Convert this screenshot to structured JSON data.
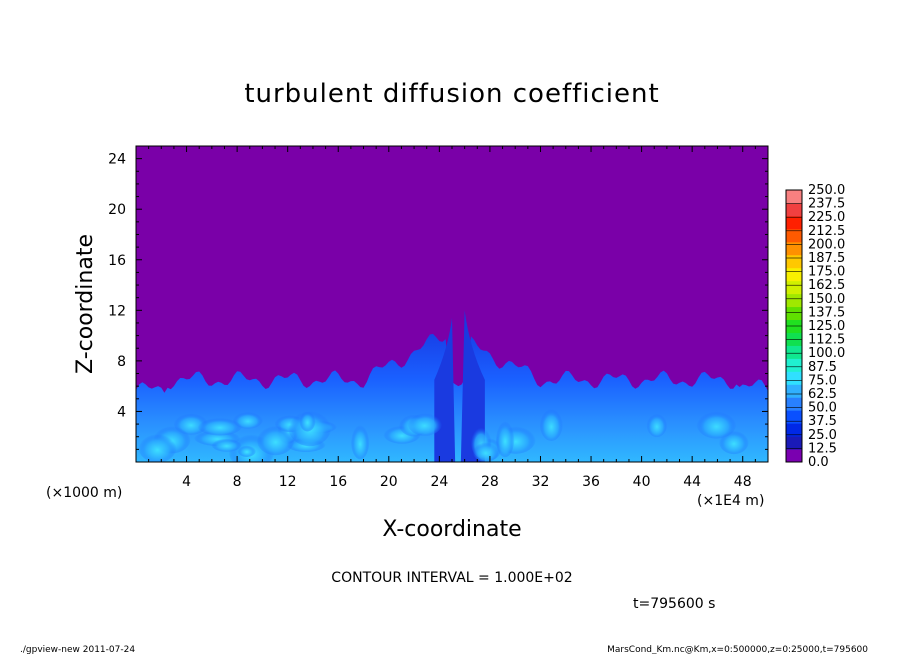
{
  "chart_data": {
    "type": "heatmap",
    "title": "turbulent diffusion coefficient",
    "xlabel": "X-coordinate",
    "ylabel": "Z-coordinate",
    "x_scale_note": "(×1E4 m)",
    "y_scale_note": "(×1000 m)",
    "xlim": [
      0,
      50
    ],
    "ylim": [
      0,
      25
    ],
    "x_ticks": [
      "4",
      "8",
      "12",
      "16",
      "20",
      "24",
      "28",
      "32",
      "36",
      "40",
      "44",
      "48"
    ],
    "y_ticks": [
      "4",
      "8",
      "12",
      "16",
      "20",
      "24"
    ],
    "colorbar_levels": [
      "0.0",
      "12.5",
      "25.0",
      "37.5",
      "50.0",
      "62.5",
      "75.0",
      "87.5",
      "100.0",
      "112.5",
      "125.0",
      "137.5",
      "150.0",
      "162.5",
      "175.0",
      "187.5",
      "200.0",
      "212.5",
      "225.0",
      "237.5",
      "250.0"
    ],
    "colorbar_colors": [
      "#7a00b0",
      "#1a1ab8",
      "#0028e6",
      "#0a50ff",
      "#2880ff",
      "#30b0ff",
      "#30e0ff",
      "#20f0d0",
      "#10e890",
      "#10e050",
      "#20e020",
      "#60e000",
      "#a0e800",
      "#d0f000",
      "#f8f000",
      "#ffc800",
      "#ff9000",
      "#ff5a00",
      "#ff2000",
      "#f04040",
      "#f88080"
    ],
    "background_color": "#7a00a8",
    "boundary_layer_top_approx": 6.5,
    "peak_height_approx": 12.0,
    "peak_x_approx": [
      25.0,
      26.0
    ],
    "contour_interval": "CONTOUR INTERVAL = 1.000E+02",
    "time_label": "t=795600 s"
  },
  "footer": {
    "left": "./gpview-new   2011-07-24",
    "right": "MarsCond_Km.nc@Km,x=0:500000,z=0:25000,t=795600"
  }
}
